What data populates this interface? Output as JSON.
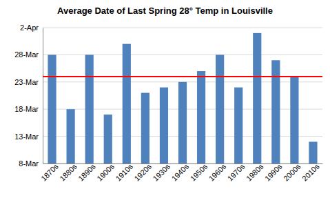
{
  "chart_data": {
    "type": "bar",
    "title": "Average Date of Last Spring 28° Temp in Louisville",
    "categories": [
      "1870s",
      "1880s",
      "1890s",
      "1900s",
      "1910s",
      "1920s",
      "1930s",
      "1940s",
      "1950s",
      "1960s",
      "1970s",
      "1980s",
      "1990s",
      "2000s",
      "2010s"
    ],
    "values": [
      87,
      77,
      87,
      76,
      89,
      80,
      81,
      82,
      84,
      87,
      81,
      91,
      86,
      83,
      71
    ],
    "color": "#4f81bd",
    "reference_line": 83,
    "ylim": [
      67,
      92
    ],
    "yticks": [
      {
        "value": 67,
        "label": "8-Mar"
      },
      {
        "value": 72,
        "label": "13-Mar"
      },
      {
        "value": 77,
        "label": "18-Mar"
      },
      {
        "value": 82,
        "label": "23-Mar"
      },
      {
        "value": 87,
        "label": "28-Mar"
      },
      {
        "value": 92,
        "label": "2-Apr"
      }
    ],
    "grid": true
  }
}
